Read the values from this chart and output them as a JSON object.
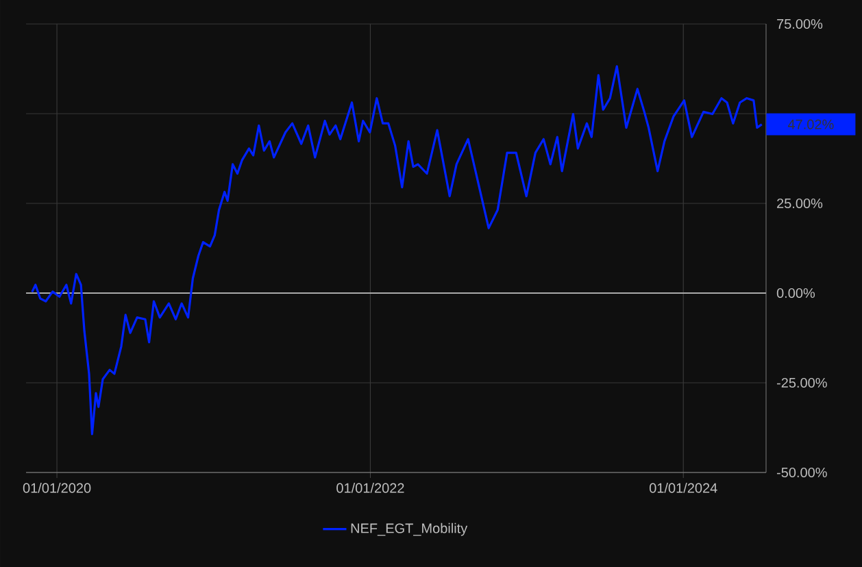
{
  "chart_data": {
    "type": "line",
    "xlim": [
      "2019-10-21",
      "2024-07-12"
    ],
    "ylim": [
      -50,
      75
    ],
    "xticks": [
      {
        "value": "2020-01-01",
        "label": "01/01/2020"
      },
      {
        "value": "2022-01-01",
        "label": "01/01/2022"
      },
      {
        "value": "2024-01-01",
        "label": "01/01/2024"
      }
    ],
    "yticks": [
      {
        "value": -50,
        "label": "-50.00%"
      },
      {
        "value": -25,
        "label": "-25.00%"
      },
      {
        "value": 0,
        "label": "0.00%"
      },
      {
        "value": 25,
        "label": "25.00%"
      },
      {
        "value": 50,
        "label": null
      },
      {
        "value": 75,
        "label": "75.00%"
      }
    ],
    "grid": true,
    "legend": "bottom",
    "ref_lines": [
      {
        "axis": "y",
        "value": 0,
        "color": "#aaaaaa"
      }
    ],
    "annotations": [
      {
        "text": "47.02%",
        "x": "2024-07-02",
        "y": 47.02
      }
    ],
    "x": [
      "2019-11-04",
      "2019-11-12",
      "2019-11-23",
      "2019-12-06",
      "2019-12-22",
      "2020-01-07",
      "2020-01-23",
      "2020-02-03",
      "2020-02-15",
      "2020-02-26",
      "2020-03-05",
      "2020-03-16",
      "2020-03-23",
      "2020-04-01",
      "2020-04-07",
      "2020-04-17",
      "2020-05-03",
      "2020-05-14",
      "2020-05-30",
      "2020-06-09",
      "2020-06-20",
      "2020-07-06",
      "2020-07-25",
      "2020-08-03",
      "2020-08-14",
      "2020-08-28",
      "2020-09-18",
      "2020-10-04",
      "2020-10-18",
      "2020-11-02",
      "2020-11-13",
      "2020-11-26",
      "2020-12-07",
      "2020-12-23",
      "2021-01-03",
      "2021-01-13",
      "2021-01-26",
      "2021-02-02",
      "2021-02-14",
      "2021-02-25",
      "2021-03-08",
      "2021-03-24",
      "2021-04-03",
      "2021-04-16",
      "2021-04-28",
      "2021-05-11",
      "2021-05-21",
      "2021-06-17",
      "2021-07-03",
      "2021-07-24",
      "2021-08-09",
      "2021-08-25",
      "2021-09-17",
      "2021-09-28",
      "2021-10-12",
      "2021-10-23",
      "2021-11-19",
      "2021-12-05",
      "2021-12-15",
      "2021-12-31",
      "2022-01-16",
      "2022-01-30",
      "2022-02-12",
      "2022-02-28",
      "2022-03-16",
      "2022-03-31",
      "2022-04-11",
      "2022-04-22",
      "2022-05-13",
      "2022-06-06",
      "2022-07-05",
      "2022-07-21",
      "2022-08-17",
      "2022-09-07",
      "2022-10-04",
      "2022-10-25",
      "2022-11-16",
      "2022-12-07",
      "2022-12-31",
      "2023-01-21",
      "2023-02-09",
      "2023-02-25",
      "2023-03-13",
      "2023-03-24",
      "2023-04-19",
      "2023-04-30",
      "2023-05-21",
      "2023-06-01",
      "2023-06-17",
      "2023-06-28",
      "2023-07-14",
      "2023-07-30",
      "2023-08-21",
      "2023-09-16",
      "2023-10-02",
      "2023-10-12",
      "2023-11-02",
      "2023-11-18",
      "2023-12-09",
      "2024-01-03",
      "2024-01-21",
      "2024-02-17",
      "2024-03-09",
      "2024-03-30",
      "2024-04-12",
      "2024-04-26",
      "2024-05-12",
      "2024-05-28",
      "2024-06-13",
      "2024-06-21",
      "2024-07-02"
    ],
    "series": [
      {
        "name": "NEF_EGT_Mobility",
        "color": "#0022ff",
        "values": [
          0.3,
          2.3,
          -1.5,
          -2.3,
          0.4,
          -1,
          2.3,
          -2.9,
          5.3,
          2.3,
          -10.6,
          -22.5,
          -39.3,
          -27.9,
          -31.7,
          -24,
          -21.4,
          -22.5,
          -14.9,
          -6.1,
          -11.1,
          -6.8,
          -7.3,
          -13.7,
          -2.3,
          -6.8,
          -2.9,
          -7.3,
          -2.9,
          -6.8,
          4.1,
          10.4,
          14.2,
          13,
          16.1,
          23.2,
          28.2,
          25.7,
          35.9,
          33.3,
          37.1,
          40.3,
          38.4,
          46.7,
          39.7,
          42.3,
          37.8,
          44.8,
          47.3,
          41.6,
          46.7,
          37.8,
          48,
          44.2,
          46.7,
          42.9,
          53.1,
          42.3,
          48,
          44.8,
          54.3,
          47.3,
          47.3,
          41,
          29.5,
          42.3,
          35.2,
          35.9,
          33.3,
          45.4,
          27,
          35.9,
          42.9,
          32.1,
          18.1,
          23.2,
          39.1,
          39.1,
          27,
          39.1,
          42.9,
          35.9,
          43.5,
          34,
          49.9,
          40.3,
          47.3,
          43.5,
          60.7,
          51.1,
          54.3,
          63.2,
          46.1,
          56.9,
          50.5,
          46.1,
          34,
          42.3,
          49.2,
          53.7,
          43.5,
          50.5,
          49.9,
          54.3,
          53.1,
          47.3,
          53.1,
          54.3,
          53.7,
          46.1,
          47.02
        ]
      }
    ]
  }
}
